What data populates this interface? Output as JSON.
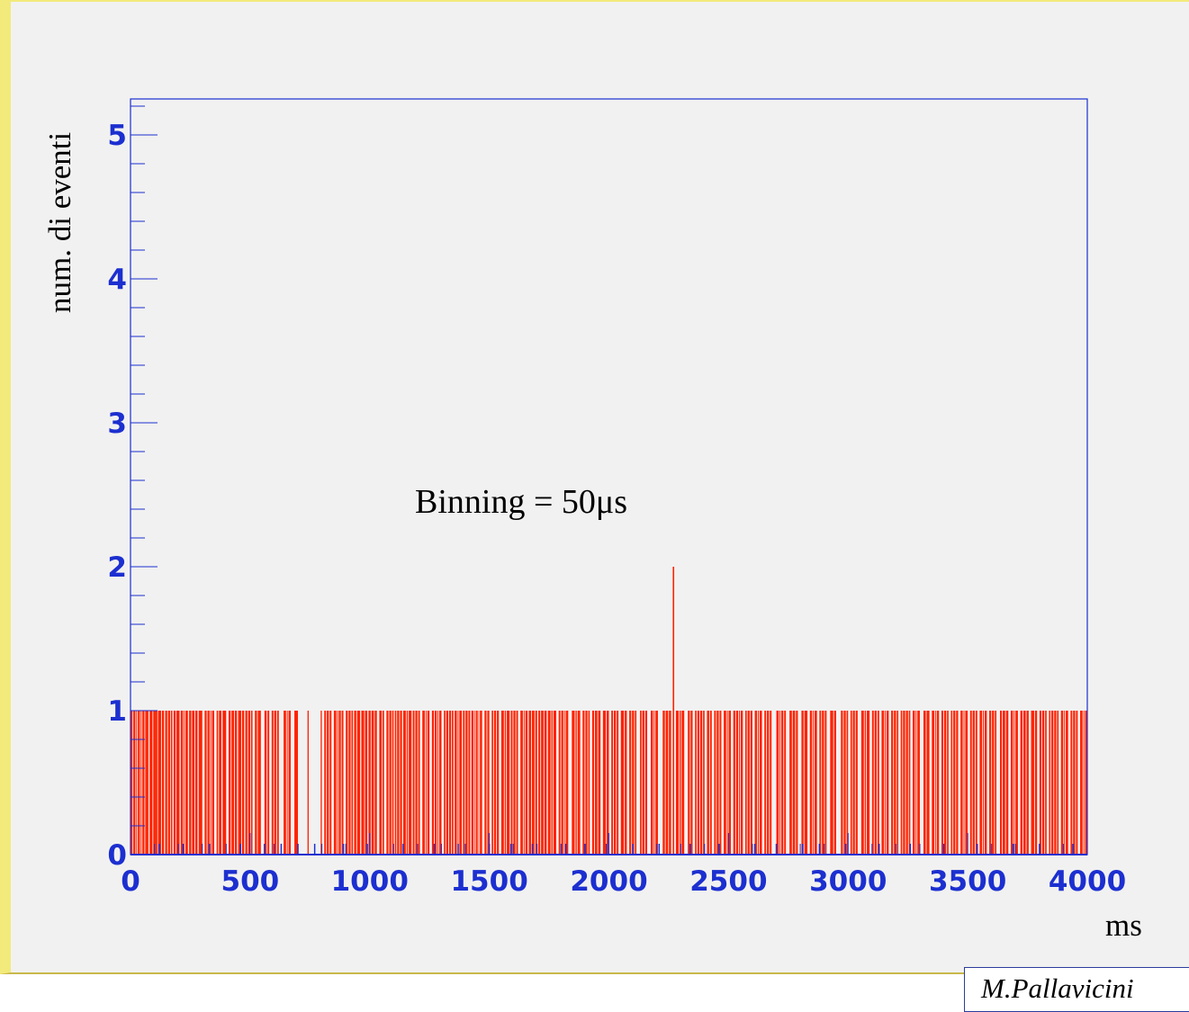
{
  "chart_data": {
    "type": "bar",
    "title": "",
    "xlabel": "ms",
    "ylabel": "num. di eventi",
    "xlim": [
      0,
      4000
    ],
    "ylim": [
      0,
      5.25
    ],
    "x_ticks": [
      "0",
      "500",
      "1000",
      "1500",
      "2000",
      "2500",
      "3000",
      "3500",
      "4000"
    ],
    "y_ticks": [
      "0",
      "1",
      "2",
      "3",
      "4",
      "5"
    ],
    "annotation": "Binning = 50μs",
    "grid": false,
    "colors": {
      "bars": "#ff2200",
      "axis": "#1c2fd0",
      "background": "#f1f1f1"
    },
    "peak": {
      "x": 2270,
      "y": 2
    },
    "filled_ranges": [
      [
        0,
        70
      ],
      [
        70,
        75
      ],
      [
        80,
        105
      ],
      [
        105,
        112
      ],
      [
        115,
        140
      ],
      [
        145,
        175
      ],
      [
        180,
        205
      ],
      [
        210,
        240
      ],
      [
        245,
        280
      ],
      [
        285,
        300
      ],
      [
        310,
        350
      ],
      [
        360,
        380
      ],
      [
        385,
        400
      ],
      [
        410,
        445
      ],
      [
        450,
        475
      ],
      [
        480,
        510
      ],
      [
        520,
        545
      ],
      [
        560,
        580
      ],
      [
        590,
        620
      ],
      [
        640,
        670
      ],
      [
        685,
        700
      ],
      [
        740,
        745
      ],
      [
        795,
        800
      ],
      [
        810,
        840
      ],
      [
        850,
        890
      ],
      [
        900,
        930
      ],
      [
        935,
        960
      ],
      [
        965,
        990
      ],
      [
        995,
        1030
      ],
      [
        1040,
        1060
      ],
      [
        1070,
        1100
      ],
      [
        1105,
        1135
      ],
      [
        1140,
        1175
      ],
      [
        1180,
        1210
      ],
      [
        1220,
        1250
      ],
      [
        1260,
        1300
      ],
      [
        1310,
        1350
      ],
      [
        1355,
        1385
      ],
      [
        1390,
        1420
      ],
      [
        1425,
        1470
      ],
      [
        1480,
        1500
      ],
      [
        1510,
        1540
      ],
      [
        1550,
        1585
      ],
      [
        1590,
        1620
      ],
      [
        1630,
        1660
      ],
      [
        1665,
        1700
      ],
      [
        1705,
        1740
      ],
      [
        1745,
        1780
      ],
      [
        1790,
        1830
      ],
      [
        1845,
        1880
      ],
      [
        1890,
        1920
      ],
      [
        1930,
        1965
      ],
      [
        1975,
        2000
      ],
      [
        2010,
        2040
      ],
      [
        2050,
        2075
      ],
      [
        2085,
        2115
      ],
      [
        2130,
        2160
      ],
      [
        2175,
        2205
      ],
      [
        2225,
        2260
      ],
      [
        2280,
        2315
      ],
      [
        2330,
        2350
      ],
      [
        2360,
        2400
      ],
      [
        2410,
        2430
      ],
      [
        2440,
        2470
      ],
      [
        2480,
        2510
      ],
      [
        2520,
        2560
      ],
      [
        2570,
        2600
      ],
      [
        2610,
        2640
      ],
      [
        2650,
        2680
      ],
      [
        2700,
        2740
      ],
      [
        2755,
        2790
      ],
      [
        2805,
        2830
      ],
      [
        2840,
        2870
      ],
      [
        2880,
        2910
      ],
      [
        2925,
        2950
      ],
      [
        2970,
        3000
      ],
      [
        3010,
        3040
      ],
      [
        3055,
        3090
      ],
      [
        3100,
        3130
      ],
      [
        3140,
        3170
      ],
      [
        3180,
        3210
      ],
      [
        3220,
        3260
      ],
      [
        3270,
        3300
      ],
      [
        3315,
        3340
      ],
      [
        3350,
        3380
      ],
      [
        3390,
        3420
      ],
      [
        3430,
        3460
      ],
      [
        3470,
        3500
      ],
      [
        3510,
        3540
      ],
      [
        3550,
        3580
      ],
      [
        3590,
        3620
      ],
      [
        3635,
        3670
      ],
      [
        3680,
        3710
      ],
      [
        3720,
        3755
      ],
      [
        3765,
        3790
      ],
      [
        3800,
        3830
      ],
      [
        3840,
        3880
      ],
      [
        3890,
        3920
      ],
      [
        3930,
        3960
      ],
      [
        3970,
        4000
      ]
    ],
    "small_x": [
      120,
      220,
      330,
      460,
      560,
      630,
      700,
      770,
      890,
      990,
      1140,
      1270,
      1370,
      1500,
      1590,
      1680,
      1820,
      1900,
      1990,
      2100,
      2210,
      2340,
      2460,
      2610,
      2700,
      2810,
      2880,
      2990,
      3130,
      3260,
      3400,
      3540,
      3690,
      3800,
      3940
    ]
  },
  "author": "M.Pallavicini"
}
